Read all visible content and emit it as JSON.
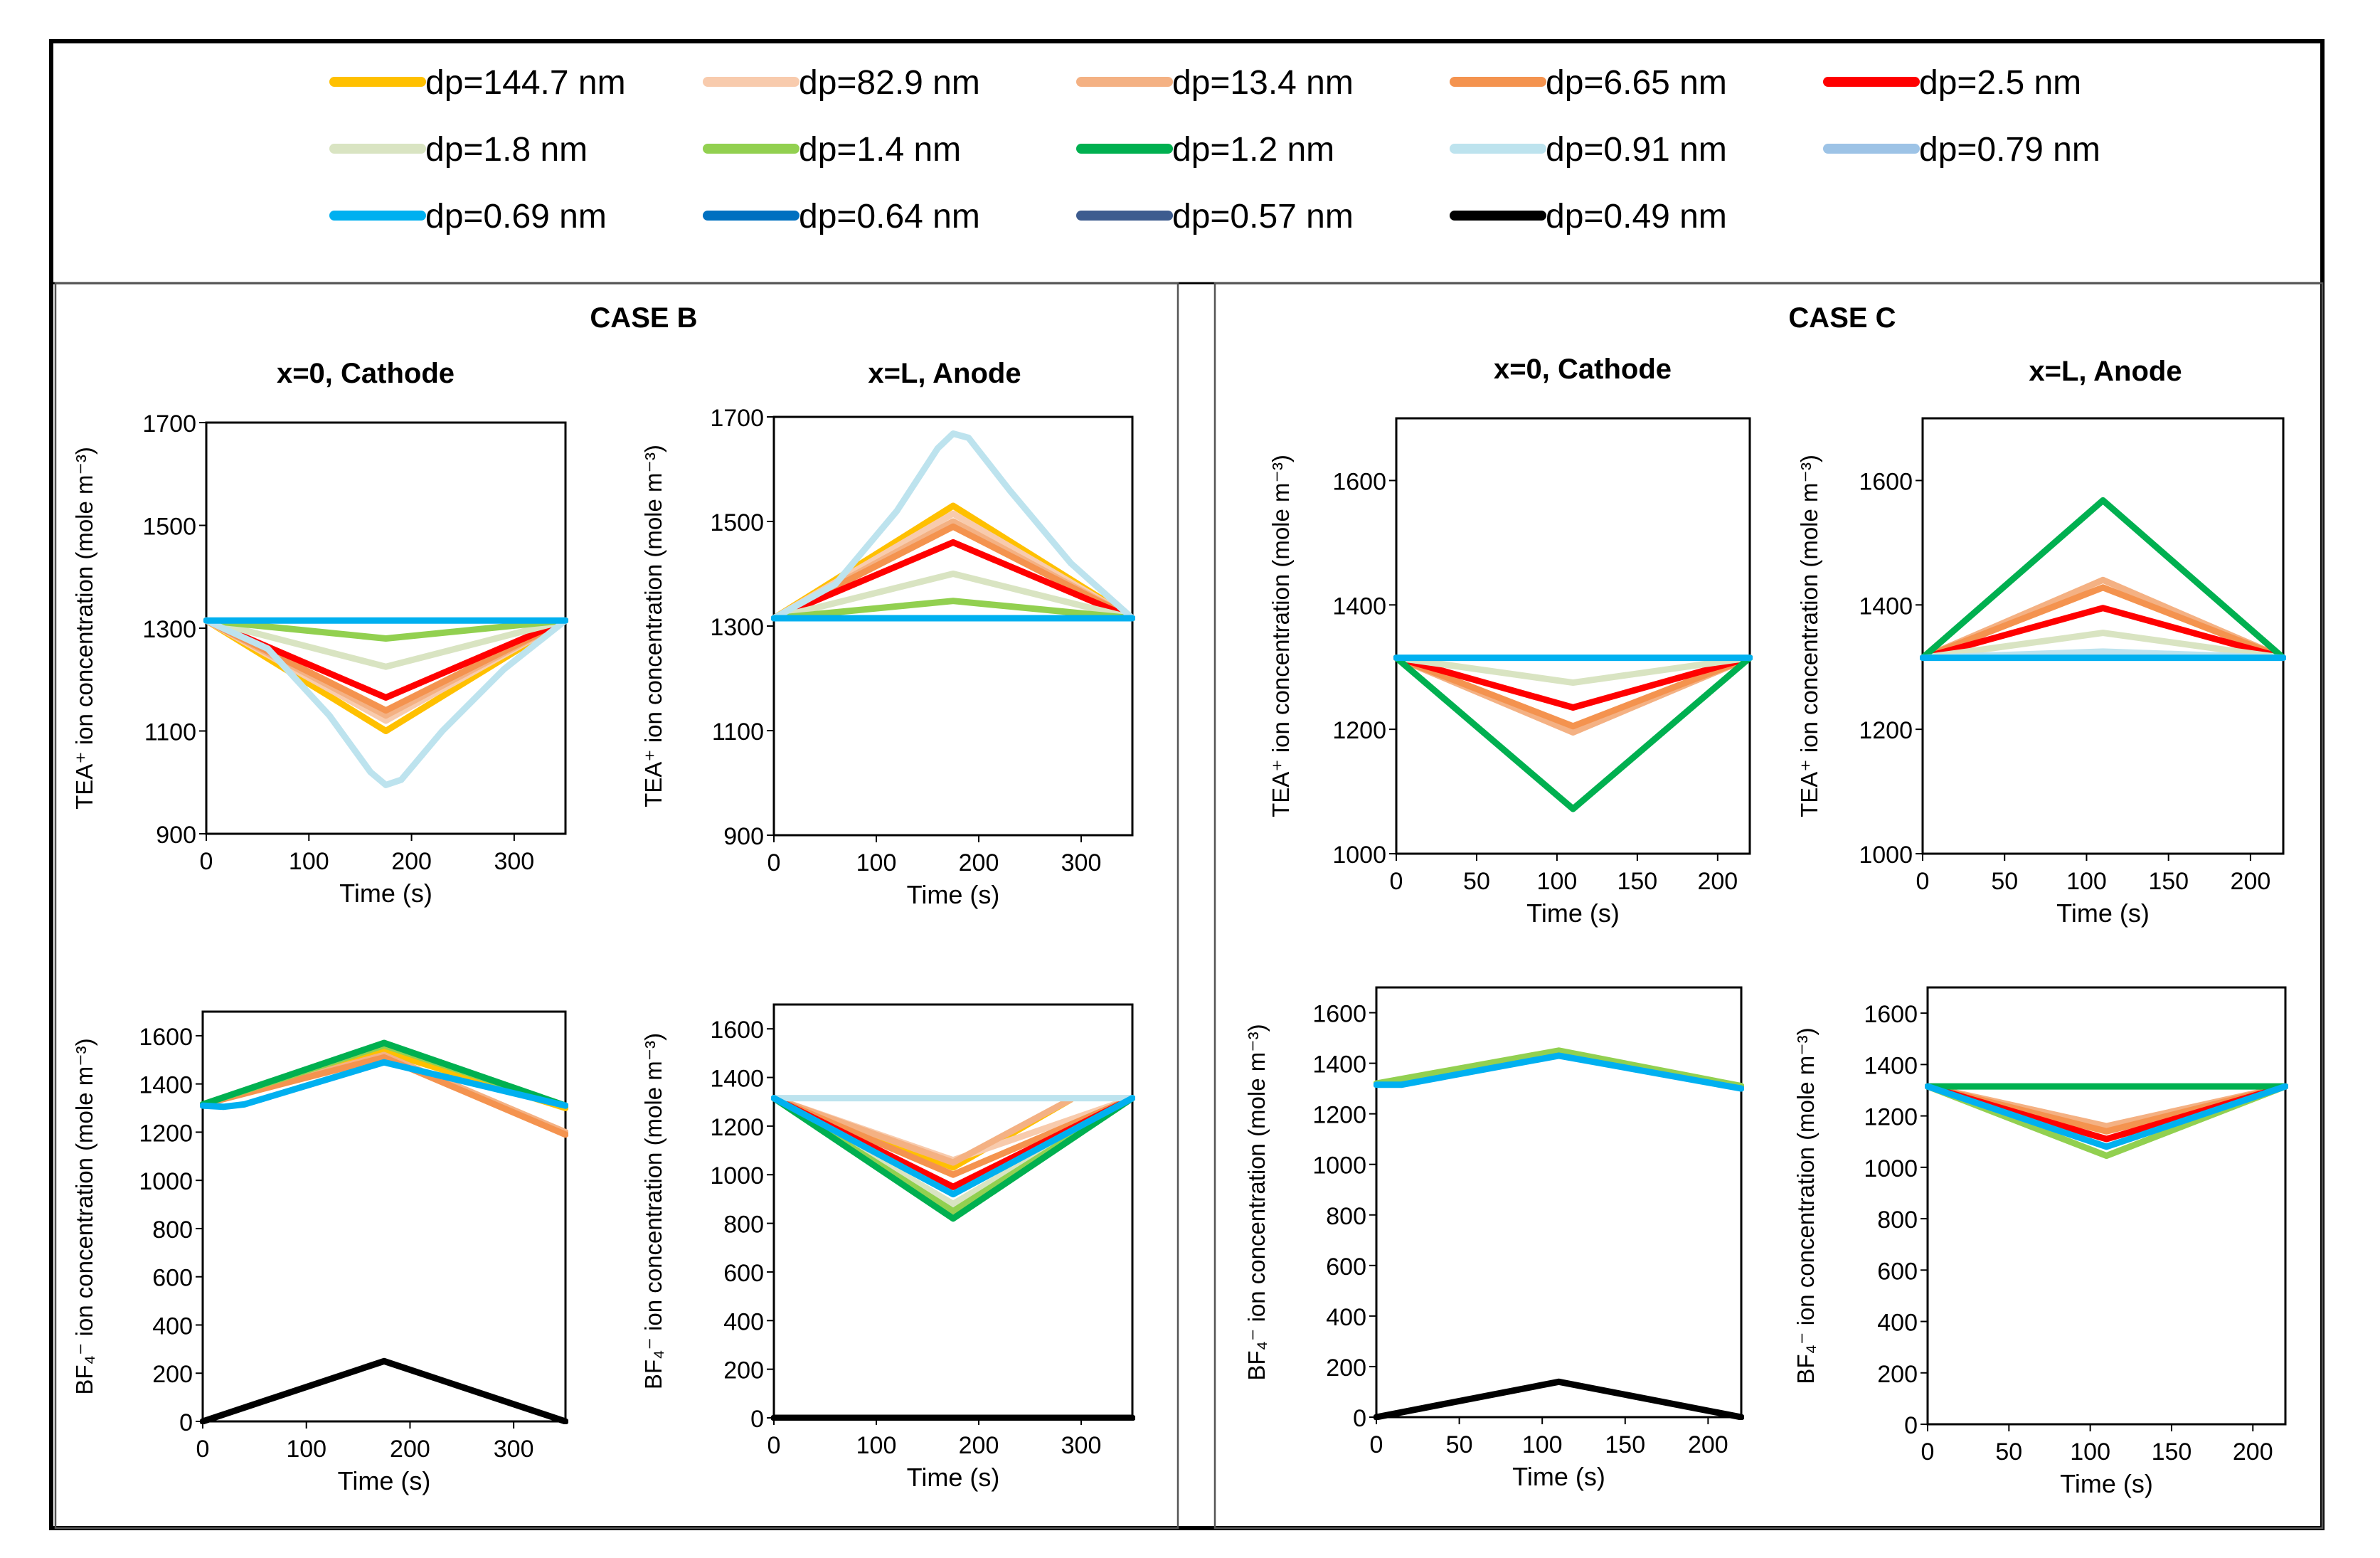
{
  "legend": {
    "entries": [
      {
        "label": "dp=144.7 nm",
        "color": "#FFC000"
      },
      {
        "label": "dp=82.9 nm",
        "color": "#F8CBAD"
      },
      {
        "label": "dp=13.4 nm",
        "color": "#F4B183"
      },
      {
        "label": "dp=6.65 nm",
        "color": "#F4934F"
      },
      {
        "label": "dp=2.5 nm",
        "color": "#FF0000"
      },
      {
        "label": "dp=1.8 nm",
        "color": "#D9E4C2"
      },
      {
        "label": "dp=1.4 nm",
        "color": "#92D050"
      },
      {
        "label": "dp=1.2 nm",
        "color": "#00B050"
      },
      {
        "label": "dp=0.91 nm",
        "color": "#BDE3EE"
      },
      {
        "label": "dp=0.79 nm",
        "color": "#9DC3E6"
      },
      {
        "label": "dp=0.69 nm",
        "color": "#00B0F0"
      },
      {
        "label": "dp=0.64 nm",
        "color": "#0070C0"
      },
      {
        "label": "dp=0.57 nm",
        "color": "#3D5C8F"
      },
      {
        "label": "dp=0.49 nm",
        "color": "#000000"
      }
    ]
  },
  "panels": {
    "caseB": {
      "title": "CASE B",
      "col0": "x=0, Cathode",
      "col1": "x=L, Anode"
    },
    "caseC": {
      "title": "CASE C",
      "col0": "x=0, Cathode",
      "col1": "x=L, Anode"
    }
  },
  "chart_data": [
    {
      "id": "B-TEA-cathode",
      "type": "line",
      "case": "CASE B",
      "title": "x=0, Cathode",
      "xlabel": "Time (s)",
      "ylabel": "TEA⁺ ion concentration (mole m⁻³)",
      "xlim": [
        0,
        350
      ],
      "ylim": [
        900,
        1700
      ],
      "xticks": [
        0,
        100,
        200,
        300
      ],
      "yticks": [
        900,
        1100,
        1300,
        1500,
        1700
      ],
      "series": [
        {
          "name": "dp=144.7 nm",
          "color": "#FFC000",
          "x": [
            0,
            175,
            350
          ],
          "y": [
            1315,
            1100,
            1315
          ]
        },
        {
          "name": "dp=82.9 nm",
          "color": "#F8CBAD",
          "x": [
            0,
            175,
            350
          ],
          "y": [
            1315,
            1120,
            1315
          ]
        },
        {
          "name": "dp=13.4 nm",
          "color": "#F4B183",
          "x": [
            0,
            175,
            350
          ],
          "y": [
            1315,
            1130,
            1315
          ]
        },
        {
          "name": "dp=6.65 nm",
          "color": "#F4934F",
          "x": [
            0,
            175,
            350
          ],
          "y": [
            1315,
            1140,
            1315
          ]
        },
        {
          "name": "dp=2.5 nm",
          "color": "#FF0000",
          "x": [
            0,
            175,
            350
          ],
          "y": [
            1315,
            1165,
            1315
          ]
        },
        {
          "name": "dp=1.8 nm",
          "color": "#D9E4C2",
          "x": [
            0,
            175,
            350
          ],
          "y": [
            1315,
            1225,
            1315
          ]
        },
        {
          "name": "dp=1.4 nm",
          "color": "#92D050",
          "x": [
            0,
            175,
            350
          ],
          "y": [
            1315,
            1280,
            1315
          ]
        },
        {
          "name": "dp=0.91 nm",
          "color": "#BDE3EE",
          "x": [
            0,
            60,
            120,
            160,
            175,
            190,
            230,
            290,
            350
          ],
          "y": [
            1315,
            1260,
            1130,
            1020,
            995,
            1005,
            1100,
            1220,
            1315
          ]
        },
        {
          "name": "dp=0.69 nm",
          "color": "#00B0F0",
          "x": [
            0,
            350
          ],
          "y": [
            1315,
            1315
          ]
        }
      ]
    },
    {
      "id": "B-TEA-anode",
      "type": "line",
      "case": "CASE B",
      "title": "x=L, Anode",
      "xlabel": "Time (s)",
      "ylabel": "TEA⁺ ion concentration (mole m⁻³)",
      "xlim": [
        0,
        350
      ],
      "ylim": [
        900,
        1700
      ],
      "xticks": [
        0,
        100,
        200,
        300
      ],
      "yticks": [
        900,
        1100,
        1300,
        1500,
        1700
      ],
      "series": [
        {
          "name": "dp=144.7 nm",
          "color": "#FFC000",
          "x": [
            0,
            175,
            350
          ],
          "y": [
            1315,
            1530,
            1315
          ]
        },
        {
          "name": "dp=82.9 nm",
          "color": "#F8CBAD",
          "x": [
            0,
            175,
            350
          ],
          "y": [
            1315,
            1515,
            1315
          ]
        },
        {
          "name": "dp=13.4 nm",
          "color": "#F4B183",
          "x": [
            0,
            175,
            350
          ],
          "y": [
            1315,
            1500,
            1315
          ]
        },
        {
          "name": "dp=6.65 nm",
          "color": "#F4934F",
          "x": [
            0,
            175,
            350
          ],
          "y": [
            1315,
            1490,
            1315
          ]
        },
        {
          "name": "dp=2.5 nm",
          "color": "#FF0000",
          "x": [
            0,
            175,
            350
          ],
          "y": [
            1315,
            1460,
            1315
          ]
        },
        {
          "name": "dp=1.8 nm",
          "color": "#D9E4C2",
          "x": [
            0,
            175,
            350
          ],
          "y": [
            1315,
            1400,
            1315
          ]
        },
        {
          "name": "dp=1.4 nm",
          "color": "#92D050",
          "x": [
            0,
            175,
            350
          ],
          "y": [
            1315,
            1348,
            1315
          ]
        },
        {
          "name": "dp=0.91 nm",
          "color": "#BDE3EE",
          "x": [
            0,
            60,
            120,
            160,
            175,
            190,
            230,
            290,
            350
          ],
          "y": [
            1315,
            1380,
            1520,
            1640,
            1668,
            1660,
            1560,
            1420,
            1315
          ]
        },
        {
          "name": "dp=0.69 nm",
          "color": "#00B0F0",
          "x": [
            0,
            350
          ],
          "y": [
            1315,
            1315
          ]
        }
      ]
    },
    {
      "id": "B-BF4-cathode",
      "type": "line",
      "case": "CASE B",
      "title": "",
      "xlabel": "Time (s)",
      "ylabel": "BF₄⁻ ion concentration (mole m⁻³)",
      "xlim": [
        0,
        350
      ],
      "ylim": [
        0,
        1700
      ],
      "xticks": [
        0,
        100,
        200,
        300
      ],
      "yticks": [
        0,
        200,
        400,
        600,
        800,
        1000,
        1200,
        1400,
        1600
      ],
      "series": [
        {
          "name": "dp=144.7 nm",
          "color": "#FFC000",
          "x": [
            0,
            175,
            350
          ],
          "y": [
            1315,
            1535,
            1300
          ]
        },
        {
          "name": "dp=13.4 nm",
          "color": "#F4B183",
          "x": [
            0,
            175,
            350
          ],
          "y": [
            1315,
            1520,
            1200
          ]
        },
        {
          "name": "dp=6.65 nm",
          "color": "#F4934F",
          "x": [
            0,
            175,
            350
          ],
          "y": [
            1315,
            1510,
            1190
          ]
        },
        {
          "name": "dp=1.4 nm",
          "color": "#92D050",
          "x": [
            0,
            175,
            350
          ],
          "y": [
            1315,
            1560,
            1310
          ]
        },
        {
          "name": "dp=1.2 nm",
          "color": "#00B050",
          "x": [
            0,
            175,
            350
          ],
          "y": [
            1315,
            1570,
            1310
          ]
        },
        {
          "name": "dp=0.69 nm",
          "color": "#00B0F0",
          "x": [
            0,
            20,
            40,
            175,
            350
          ],
          "y": [
            1310,
            1305,
            1315,
            1490,
            1310
          ]
        },
        {
          "name": "dp=0.49 nm",
          "color": "#000000",
          "x": [
            0,
            175,
            350
          ],
          "y": [
            0,
            250,
            0
          ]
        }
      ]
    },
    {
      "id": "B-BF4-anode",
      "type": "line",
      "case": "CASE B",
      "title": "",
      "xlabel": "Time (s)",
      "ylabel": "BF₄⁻ ion concentration (mole m⁻³)",
      "xlim": [
        0,
        350
      ],
      "ylim": [
        0,
        1700
      ],
      "xticks": [
        0,
        100,
        200,
        300
      ],
      "yticks": [
        0,
        200,
        400,
        600,
        800,
        1000,
        1200,
        1400,
        1600
      ],
      "series": [
        {
          "name": "dp=144.7 nm",
          "color": "#FFC000",
          "x": [
            0,
            175,
            290
          ],
          "y": [
            1315,
            1030,
            1310
          ]
        },
        {
          "name": "dp=82.9 nm",
          "color": "#F8CBAD",
          "x": [
            0,
            175,
            350
          ],
          "y": [
            1315,
            1060,
            1315
          ]
        },
        {
          "name": "dp=13.4 nm",
          "color": "#F4B183",
          "x": [
            0,
            175,
            290
          ],
          "y": [
            1315,
            1050,
            1310
          ]
        },
        {
          "name": "dp=6.65 nm",
          "color": "#F4934F",
          "x": [
            0,
            175,
            350
          ],
          "y": [
            1315,
            1000,
            1315
          ]
        },
        {
          "name": "dp=2.5 nm",
          "color": "#FF0000",
          "x": [
            0,
            175,
            350
          ],
          "y": [
            1315,
            950,
            1315
          ]
        },
        {
          "name": "dp=1.8 nm",
          "color": "#D9E4C2",
          "x": [
            0,
            175,
            350
          ],
          "y": [
            1315,
            880,
            1315
          ]
        },
        {
          "name": "dp=1.4 nm",
          "color": "#92D050",
          "x": [
            0,
            175,
            350
          ],
          "y": [
            1315,
            850,
            1315
          ]
        },
        {
          "name": "dp=1.2 nm",
          "color": "#00B050",
          "x": [
            0,
            175,
            350
          ],
          "y": [
            1315,
            820,
            1315
          ]
        },
        {
          "name": "dp=0.91 nm",
          "color": "#BDE3EE",
          "x": [
            0,
            350
          ],
          "y": [
            1315,
            1315
          ]
        },
        {
          "name": "dp=0.69 nm",
          "color": "#00B0F0",
          "x": [
            0,
            175,
            350
          ],
          "y": [
            1315,
            920,
            1315
          ]
        },
        {
          "name": "dp=0.49 nm",
          "color": "#000000",
          "x": [
            0,
            350
          ],
          "y": [
            0,
            0
          ]
        }
      ]
    },
    {
      "id": "C-TEA-cathode",
      "type": "line",
      "case": "CASE C",
      "title": "x=0, Cathode",
      "xlabel": "Time (s)",
      "ylabel": "TEA⁺ ion concentration (mole m⁻³)",
      "xlim": [
        0,
        220
      ],
      "ylim": [
        1000,
        1700
      ],
      "xticks": [
        0,
        50,
        100,
        150,
        200
      ],
      "yticks": [
        1000,
        1200,
        1400,
        1600
      ],
      "series": [
        {
          "name": "dp=13.4 nm",
          "color": "#F4B183",
          "x": [
            0,
            110,
            220
          ],
          "y": [
            1315,
            1195,
            1315
          ]
        },
        {
          "name": "dp=6.65 nm",
          "color": "#F4934F",
          "x": [
            0,
            110,
            220
          ],
          "y": [
            1315,
            1205,
            1315
          ]
        },
        {
          "name": "dp=2.5 nm",
          "color": "#FF0000",
          "x": [
            0,
            110,
            220
          ],
          "y": [
            1315,
            1235,
            1315
          ]
        },
        {
          "name": "dp=1.8 nm",
          "color": "#D9E4C2",
          "x": [
            0,
            110,
            220
          ],
          "y": [
            1315,
            1275,
            1315
          ]
        },
        {
          "name": "dp=1.2 nm",
          "color": "#00B050",
          "x": [
            0,
            110,
            220
          ],
          "y": [
            1315,
            1072,
            1315
          ]
        },
        {
          "name": "dp=0.69 nm",
          "color": "#00B0F0",
          "x": [
            0,
            220
          ],
          "y": [
            1315,
            1315
          ]
        }
      ]
    },
    {
      "id": "C-TEA-anode",
      "type": "line",
      "case": "CASE C",
      "title": "x=L, Anode",
      "xlabel": "Time (s)",
      "ylabel": "TEA⁺ ion concentration (mole m⁻³)",
      "xlim": [
        0,
        220
      ],
      "ylim": [
        1000,
        1700
      ],
      "xticks": [
        0,
        50,
        100,
        150,
        200
      ],
      "yticks": [
        1000,
        1200,
        1400,
        1600
      ],
      "series": [
        {
          "name": "dp=13.4 nm",
          "color": "#F4B183",
          "x": [
            0,
            110,
            220
          ],
          "y": [
            1315,
            1440,
            1315
          ]
        },
        {
          "name": "dp=6.65 nm",
          "color": "#F4934F",
          "x": [
            0,
            110,
            220
          ],
          "y": [
            1315,
            1428,
            1315
          ]
        },
        {
          "name": "dp=2.5 nm",
          "color": "#FF0000",
          "x": [
            0,
            110,
            220
          ],
          "y": [
            1315,
            1395,
            1315
          ]
        },
        {
          "name": "dp=1.8 nm",
          "color": "#D9E4C2",
          "x": [
            0,
            110,
            220
          ],
          "y": [
            1315,
            1355,
            1315
          ]
        },
        {
          "name": "dp=1.2 nm",
          "color": "#00B050",
          "x": [
            0,
            110,
            220
          ],
          "y": [
            1315,
            1568,
            1315
          ]
        },
        {
          "name": "dp=0.91 nm",
          "color": "#BDE3EE",
          "x": [
            0,
            110,
            220
          ],
          "y": [
            1315,
            1325,
            1315
          ]
        },
        {
          "name": "dp=0.69 nm",
          "color": "#00B0F0",
          "x": [
            0,
            220
          ],
          "y": [
            1315,
            1315
          ]
        }
      ]
    },
    {
      "id": "C-BF4-cathode",
      "type": "line",
      "case": "CASE C",
      "title": "",
      "xlabel": "Time (s)",
      "ylabel": "BF₄⁻ ion concentration (mole m⁻³)",
      "xlim": [
        0,
        220
      ],
      "ylim": [
        0,
        1700
      ],
      "xticks": [
        0,
        50,
        100,
        150,
        200
      ],
      "yticks": [
        0,
        200,
        400,
        600,
        800,
        1000,
        1200,
        1400,
        1600
      ],
      "series": [
        {
          "name": "dp=1.4 nm",
          "color": "#92D050",
          "x": [
            0,
            110,
            220
          ],
          "y": [
            1320,
            1450,
            1310
          ]
        },
        {
          "name": "dp=0.69 nm",
          "color": "#00B0F0",
          "x": [
            0,
            15,
            110,
            220
          ],
          "y": [
            1315,
            1315,
            1430,
            1300
          ]
        },
        {
          "name": "dp=0.49 nm",
          "color": "#000000",
          "x": [
            0,
            110,
            220
          ],
          "y": [
            0,
            140,
            0
          ]
        }
      ]
    },
    {
      "id": "C-BF4-anode",
      "type": "line",
      "case": "CASE C",
      "title": "",
      "xlabel": "Time (s)",
      "ylabel": "BF₄⁻ ion concentration (mole m⁻³)",
      "xlim": [
        0,
        220
      ],
      "ylim": [
        0,
        1700
      ],
      "xticks": [
        0,
        50,
        100,
        150,
        200
      ],
      "yticks": [
        0,
        200,
        400,
        600,
        800,
        1000,
        1200,
        1400,
        1600
      ],
      "series": [
        {
          "name": "dp=13.4 nm",
          "color": "#F4B183",
          "x": [
            0,
            110,
            220
          ],
          "y": [
            1315,
            1160,
            1315
          ]
        },
        {
          "name": "dp=6.65 nm",
          "color": "#F4934F",
          "x": [
            0,
            110,
            220
          ],
          "y": [
            1315,
            1140,
            1315
          ]
        },
        {
          "name": "dp=2.5 nm",
          "color": "#FF0000",
          "x": [
            0,
            110,
            220
          ],
          "y": [
            1315,
            1110,
            1315
          ]
        },
        {
          "name": "dp=1.4 nm",
          "color": "#92D050",
          "x": [
            0,
            110,
            220
          ],
          "y": [
            1315,
            1045,
            1315
          ]
        },
        {
          "name": "dp=1.2 nm",
          "color": "#00B050",
          "x": [
            0,
            220
          ],
          "y": [
            1315,
            1315
          ]
        },
        {
          "name": "dp=0.69 nm",
          "color": "#00B0F0",
          "x": [
            0,
            110,
            220
          ],
          "y": [
            1315,
            1080,
            1315
          ]
        }
      ]
    }
  ]
}
